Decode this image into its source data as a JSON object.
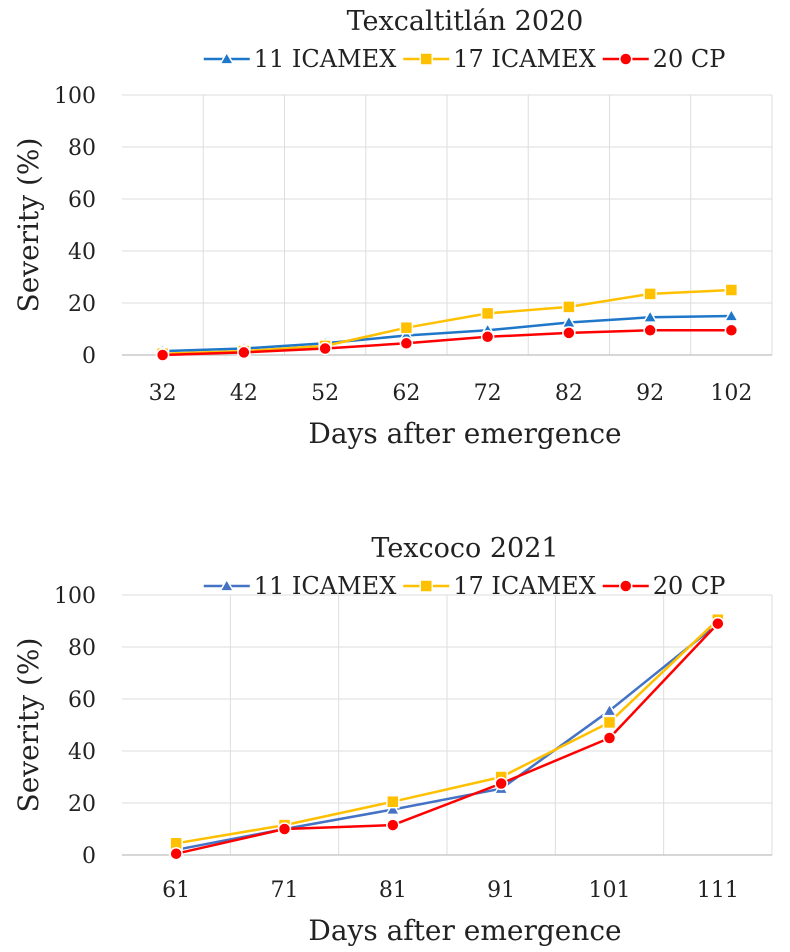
{
  "chart_data": [
    {
      "type": "line",
      "title": "Texcaltitlán 2020",
      "xlabel": "Days after emergence",
      "ylabel": "Severity (%)",
      "categories": [
        "32",
        "42",
        "52",
        "62",
        "72",
        "82",
        "92",
        "102"
      ],
      "ylim": [
        0,
        100
      ],
      "yticks": [
        0,
        20,
        40,
        60,
        80,
        100
      ],
      "grid": true,
      "legend_position": "top",
      "series": [
        {
          "name": "11 ICAMEX",
          "color": "#1f77c9",
          "marker": "triangle",
          "values": [
            1.5,
            2.5,
            4.5,
            7.5,
            9.5,
            12.5,
            14.5,
            15
          ]
        },
        {
          "name": "17 ICAMEX",
          "color": "#ffc000",
          "marker": "square",
          "values": [
            0.5,
            1.5,
            3.5,
            10.5,
            16,
            18.5,
            23.5,
            25
          ]
        },
        {
          "name": "20 CP",
          "color": "#ff0000",
          "marker": "circle",
          "values": [
            0,
            1,
            2.5,
            4.5,
            7,
            8.5,
            9.5,
            9.5
          ]
        }
      ]
    },
    {
      "type": "line",
      "title": "Texcoco 2021",
      "xlabel": "Days after emergence",
      "ylabel": "Severity (%)",
      "categories": [
        "61",
        "71",
        "81",
        "91",
        "101",
        "111"
      ],
      "ylim": [
        0,
        100
      ],
      "yticks": [
        0,
        20,
        40,
        60,
        80,
        100
      ],
      "grid": true,
      "legend_position": "top",
      "series": [
        {
          "name": "11 ICAMEX",
          "color": "#4472c4",
          "marker": "triangle",
          "values": [
            2,
            10,
            17.5,
            25.5,
            55.5,
            89
          ]
        },
        {
          "name": "17 ICAMEX",
          "color": "#ffc000",
          "marker": "square",
          "values": [
            4.5,
            11.5,
            20.5,
            30,
            51,
            90.5
          ]
        },
        {
          "name": "20 CP",
          "color": "#ff0000",
          "marker": "circle",
          "values": [
            0.5,
            10,
            11.5,
            27.5,
            45,
            89
          ]
        }
      ]
    }
  ]
}
